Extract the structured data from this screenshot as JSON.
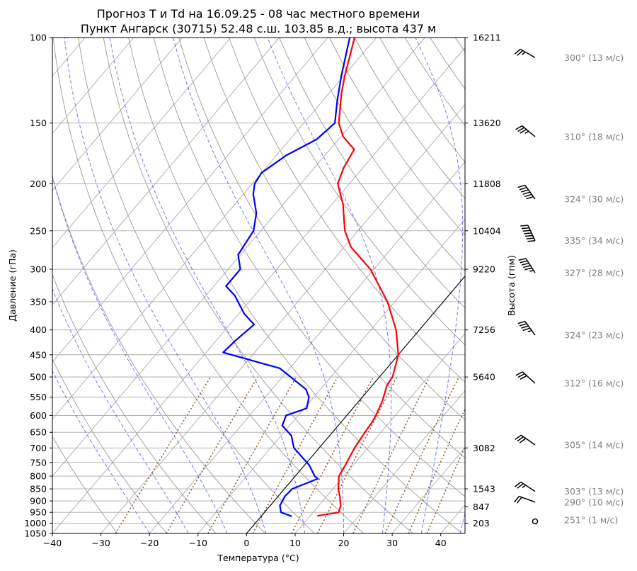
{
  "chart_data": {
    "type": "line",
    "subtype": "skew-t",
    "title": "Прогноз T и Td на 16.09.25 - 08 час местного времени",
    "subtitle": "Пункт Ангарск (30715) 52.48 с.ш. 103.85 в.д.; высота 437 м",
    "xlabel": "Температура (°C)",
    "ylabel": "Давление (гПа)",
    "ylabel_right": "Высота (гпм)",
    "xlim": [
      -40,
      45
    ],
    "ylim": [
      1050,
      100
    ],
    "y_scale": "log",
    "x_ticks": [
      -40,
      -30,
      -20,
      -10,
      0,
      10,
      20,
      30,
      40
    ],
    "pressure_ticks": [
      100,
      150,
      200,
      250,
      300,
      350,
      400,
      450,
      500,
      550,
      600,
      650,
      700,
      750,
      800,
      850,
      900,
      950,
      1000,
      1050
    ],
    "height_ticks": [
      {
        "p": 100,
        "label": "16211"
      },
      {
        "p": 150,
        "label": "13620"
      },
      {
        "p": 200,
        "label": "11808"
      },
      {
        "p": 250,
        "label": "10404"
      },
      {
        "p": 300,
        "label": "9220"
      },
      {
        "p": 400,
        "label": "7256"
      },
      {
        "p": 500,
        "label": "5640"
      },
      {
        "p": 700,
        "label": "3082"
      },
      {
        "p": 850,
        "label": "1543"
      },
      {
        "p": 925,
        "label": "847"
      },
      {
        "p": 1000,
        "label": "203"
      }
    ],
    "series": [
      {
        "key": "temperature",
        "color": "#ff0000",
        "points": [
          {
            "p": 966,
            "t": 11.5
          },
          {
            "p": 950,
            "t": 15.3
          },
          {
            "p": 920,
            "t": 14.5
          },
          {
            "p": 880,
            "t": 12.7
          },
          {
            "p": 850,
            "t": 11.1
          },
          {
            "p": 800,
            "t": 9.0
          },
          {
            "p": 760,
            "t": 8.4
          },
          {
            "p": 700,
            "t": 7.3
          },
          {
            "p": 650,
            "t": 6.7
          },
          {
            "p": 620,
            "t": 6.4
          },
          {
            "p": 600,
            "t": 6.0
          },
          {
            "p": 560,
            "t": 4.8
          },
          {
            "p": 520,
            "t": 3.0
          },
          {
            "p": 500,
            "t": 2.7
          },
          {
            "p": 450,
            "t": 0.0
          },
          {
            "p": 400,
            "t": -4.8
          },
          {
            "p": 350,
            "t": -11.5
          },
          {
            "p": 300,
            "t": -20.7
          },
          {
            "p": 270,
            "t": -28.6
          },
          {
            "p": 250,
            "t": -32.7
          },
          {
            "p": 220,
            "t": -37.8
          },
          {
            "p": 200,
            "t": -42.4
          },
          {
            "p": 185,
            "t": -44.0
          },
          {
            "p": 170,
            "t": -45.0
          },
          {
            "p": 160,
            "t": -49.5
          },
          {
            "p": 150,
            "t": -52.8
          },
          {
            "p": 130,
            "t": -57.5
          },
          {
            "p": 120,
            "t": -59.8
          },
          {
            "p": 100,
            "t": -64.5
          }
        ]
      },
      {
        "key": "dewpoint",
        "color": "#0000ff",
        "points": [
          {
            "p": 968,
            "t": 6.3
          },
          {
            "p": 950,
            "t": 3.4
          },
          {
            "p": 920,
            "t": 2.0
          },
          {
            "p": 880,
            "t": 1.4
          },
          {
            "p": 850,
            "t": 1.6
          },
          {
            "p": 810,
            "t": 5.1
          },
          {
            "p": 800,
            "t": 4.0
          },
          {
            "p": 760,
            "t": 1.0
          },
          {
            "p": 700,
            "t": -5.2
          },
          {
            "p": 660,
            "t": -7.9
          },
          {
            "p": 630,
            "t": -11.5
          },
          {
            "p": 600,
            "t": -12.5
          },
          {
            "p": 580,
            "t": -9.5
          },
          {
            "p": 550,
            "t": -11.0
          },
          {
            "p": 530,
            "t": -13.0
          },
          {
            "p": 510,
            "t": -16.5
          },
          {
            "p": 480,
            "t": -22.0
          },
          {
            "p": 445,
            "t": -36.5
          },
          {
            "p": 420,
            "t": -36.0
          },
          {
            "p": 390,
            "t": -35.0
          },
          {
            "p": 370,
            "t": -39.0
          },
          {
            "p": 340,
            "t": -44.0
          },
          {
            "p": 325,
            "t": -47.5
          },
          {
            "p": 300,
            "t": -47.5
          },
          {
            "p": 280,
            "t": -50.5
          },
          {
            "p": 250,
            "t": -51.5
          },
          {
            "p": 230,
            "t": -54.0
          },
          {
            "p": 210,
            "t": -58.0
          },
          {
            "p": 200,
            "t": -59.5
          },
          {
            "p": 190,
            "t": -60.0
          },
          {
            "p": 175,
            "t": -58.0
          },
          {
            "p": 162,
            "t": -54.5
          },
          {
            "p": 150,
            "t": -53.6
          },
          {
            "p": 135,
            "t": -57.0
          },
          {
            "p": 120,
            "t": -60.5
          },
          {
            "p": 100,
            "t": -65.5
          }
        ]
      }
    ],
    "winds": [
      {
        "p": 110,
        "label": "300° (13 м/с)"
      },
      {
        "p": 160,
        "label": "310° (18 м/с)"
      },
      {
        "p": 215,
        "label": "324° (30 м/с)"
      },
      {
        "p": 262,
        "label": "335° (34 м/с)"
      },
      {
        "p": 305,
        "label": "327° (28 м/с)"
      },
      {
        "p": 410,
        "label": "324° (23 м/с)"
      },
      {
        "p": 515,
        "label": "312° (16 м/с)"
      },
      {
        "p": 690,
        "label": "305° (14 м/с)"
      },
      {
        "p": 860,
        "label": "303° (13 м/с)"
      },
      {
        "p": 905,
        "label": "290° (10 м/с)"
      },
      {
        "p": 985,
        "label": "251° (1 м/с)"
      }
    ],
    "grid": true
  }
}
